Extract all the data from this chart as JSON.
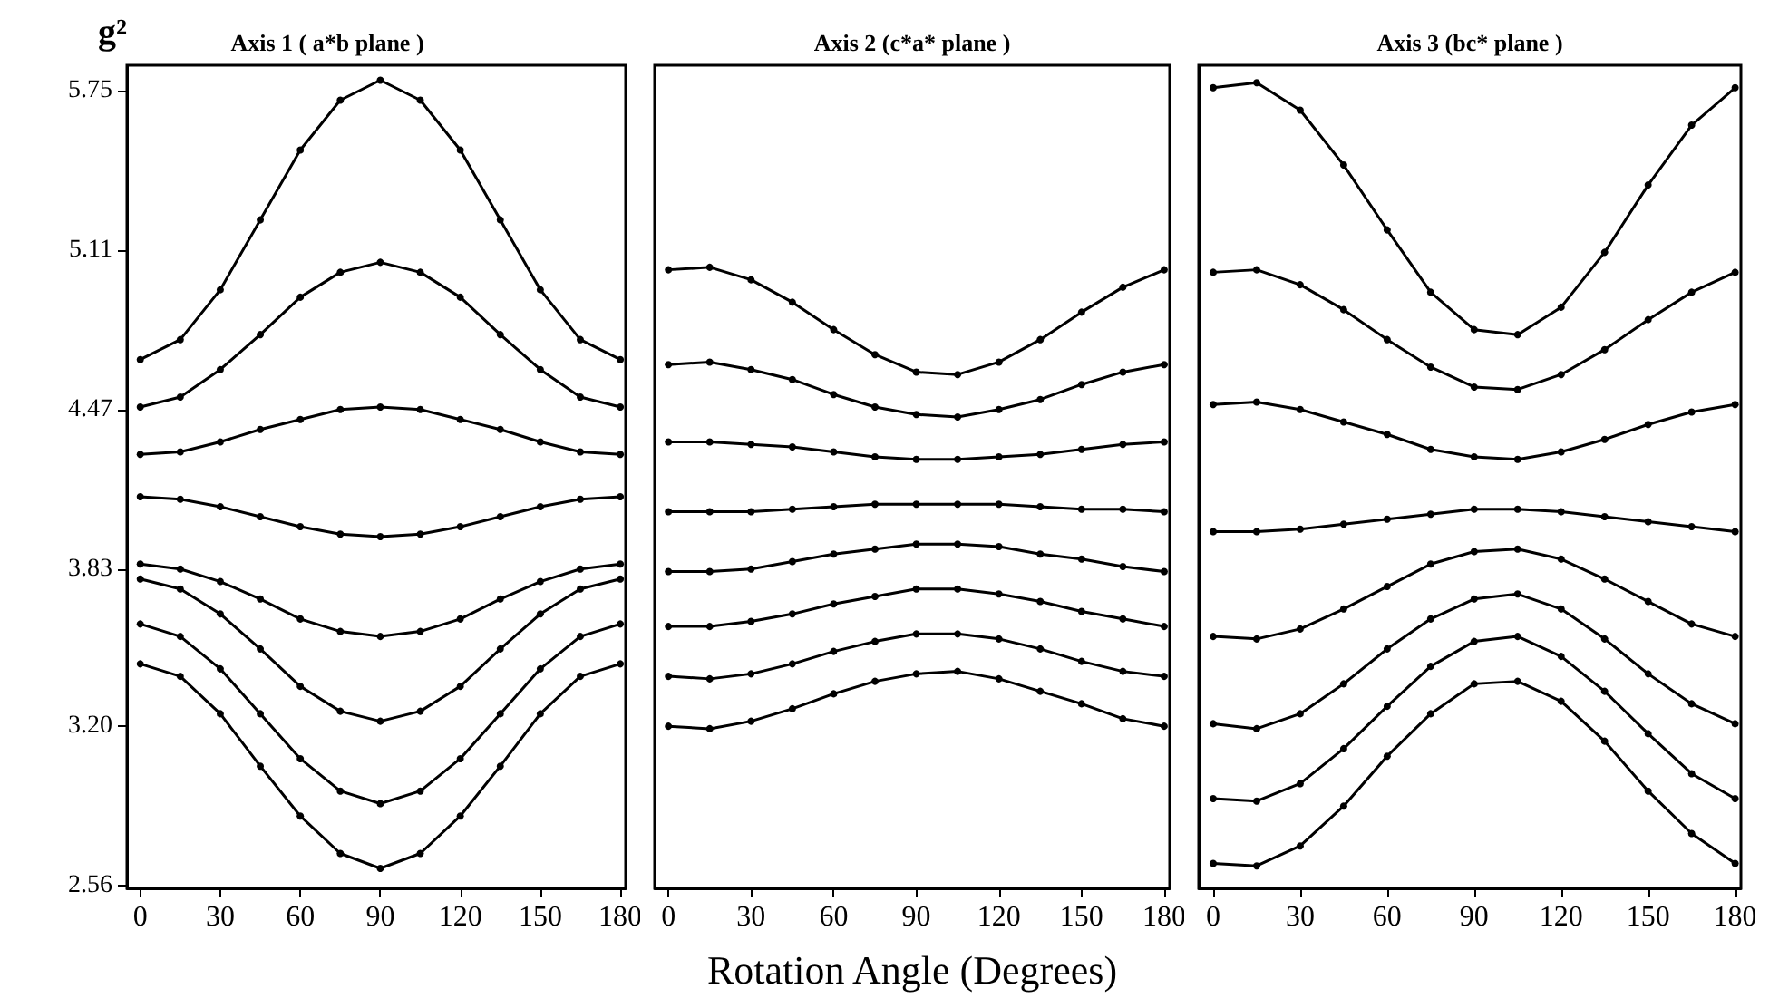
{
  "chart_data": [
    {
      "type": "line",
      "title": "Axis 1 ( a*b plane )",
      "ylabel": "g²",
      "x": [
        0,
        15,
        30,
        45,
        60,
        75,
        90,
        105,
        120,
        135,
        150,
        165,
        180
      ],
      "xlim": [
        -5,
        182
      ],
      "xticks": [
        0,
        30,
        60,
        90,
        120,
        150,
        180
      ],
      "ylim": [
        2.55,
        5.85
      ],
      "yticks": [
        2.56,
        {
          "value": 3.2,
          "label": "3.20"
        },
        3.83,
        4.47,
        5.11,
        5.75
      ],
      "grid": false,
      "marker": "circle",
      "line_style": "solid",
      "series": [
        {
          "color": "#000000",
          "values": [
            4.67,
            4.75,
            4.95,
            5.23,
            5.51,
            5.71,
            5.79,
            5.71,
            5.51,
            5.23,
            4.95,
            4.75,
            4.67
          ]
        },
        {
          "color": "#000000",
          "values": [
            4.48,
            4.52,
            4.63,
            4.77,
            4.92,
            5.02,
            5.06,
            5.02,
            4.92,
            4.77,
            4.63,
            4.52,
            4.48
          ]
        },
        {
          "color": "#000000",
          "values": [
            4.29,
            4.3,
            4.34,
            4.39,
            4.43,
            4.47,
            4.48,
            4.47,
            4.43,
            4.39,
            4.34,
            4.3,
            4.29
          ]
        },
        {
          "color": "#000000",
          "values": [
            4.12,
            4.11,
            4.08,
            4.04,
            4.0,
            3.97,
            3.96,
            3.97,
            4.0,
            4.04,
            4.08,
            4.11,
            4.12
          ]
        },
        {
          "color": "#000000",
          "values": [
            3.85,
            3.83,
            3.78,
            3.71,
            3.63,
            3.58,
            3.56,
            3.58,
            3.63,
            3.71,
            3.78,
            3.83,
            3.85
          ]
        },
        {
          "color": "#000000",
          "values": [
            3.79,
            3.75,
            3.65,
            3.51,
            3.36,
            3.26,
            3.22,
            3.26,
            3.36,
            3.51,
            3.65,
            3.75,
            3.79
          ]
        },
        {
          "color": "#000000",
          "values": [
            3.61,
            3.56,
            3.43,
            3.25,
            3.07,
            2.94,
            2.89,
            2.94,
            3.07,
            3.25,
            3.43,
            3.56,
            3.61
          ]
        },
        {
          "color": "#000000",
          "values": [
            3.45,
            3.4,
            3.25,
            3.04,
            2.84,
            2.69,
            2.63,
            2.69,
            2.84,
            3.04,
            3.25,
            3.4,
            3.45
          ]
        }
      ]
    },
    {
      "type": "line",
      "title": "Axis 2 (c*a* plane )",
      "xlabel": "Rotation Angle (Degrees)",
      "x": [
        0,
        15,
        30,
        45,
        60,
        75,
        90,
        105,
        120,
        135,
        150,
        165,
        180
      ],
      "xlim": [
        -5,
        182
      ],
      "xticks": [
        0,
        30,
        60,
        90,
        120,
        150,
        180
      ],
      "ylim": [
        2.55,
        5.85
      ],
      "tick_labels": "x",
      "grid": false,
      "marker": "circle",
      "line_style": "solid",
      "series": [
        {
          "color": "#000000",
          "values": [
            5.03,
            5.04,
            4.99,
            4.9,
            4.79,
            4.69,
            4.62,
            4.61,
            4.66,
            4.75,
            4.86,
            4.96,
            5.03
          ]
        },
        {
          "color": "#000000",
          "values": [
            4.65,
            4.66,
            4.63,
            4.59,
            4.53,
            4.48,
            4.45,
            4.44,
            4.47,
            4.51,
            4.57,
            4.62,
            4.65
          ]
        },
        {
          "color": "#000000",
          "values": [
            4.34,
            4.34,
            4.33,
            4.32,
            4.3,
            4.28,
            4.27,
            4.27,
            4.28,
            4.29,
            4.31,
            4.33,
            4.34
          ]
        },
        {
          "color": "#000000",
          "values": [
            4.06,
            4.06,
            4.06,
            4.07,
            4.08,
            4.09,
            4.09,
            4.09,
            4.09,
            4.08,
            4.07,
            4.07,
            4.06
          ]
        },
        {
          "color": "#000000",
          "values": [
            3.82,
            3.82,
            3.83,
            3.86,
            3.89,
            3.91,
            3.93,
            3.93,
            3.92,
            3.89,
            3.87,
            3.84,
            3.82
          ]
        },
        {
          "color": "#000000",
          "values": [
            3.6,
            3.6,
            3.62,
            3.65,
            3.69,
            3.72,
            3.75,
            3.75,
            3.73,
            3.7,
            3.66,
            3.63,
            3.6
          ]
        },
        {
          "color": "#000000",
          "values": [
            3.4,
            3.39,
            3.41,
            3.45,
            3.5,
            3.54,
            3.57,
            3.57,
            3.55,
            3.51,
            3.46,
            3.42,
            3.4
          ]
        },
        {
          "color": "#000000",
          "values": [
            3.2,
            3.19,
            3.22,
            3.27,
            3.33,
            3.38,
            3.41,
            3.42,
            3.39,
            3.34,
            3.29,
            3.23,
            3.2
          ]
        }
      ]
    },
    {
      "type": "line",
      "title": "Axis 3 (bc* plane )",
      "x": [
        0,
        15,
        30,
        45,
        60,
        75,
        90,
        105,
        120,
        135,
        150,
        165,
        180
      ],
      "xlim": [
        -5,
        182
      ],
      "xticks": [
        0,
        30,
        60,
        90,
        120,
        150,
        180
      ],
      "ylim": [
        2.55,
        5.85
      ],
      "tick_labels": "x",
      "grid": false,
      "marker": "circle",
      "line_style": "solid",
      "series": [
        {
          "color": "#000000",
          "values": [
            5.76,
            5.78,
            5.67,
            5.45,
            5.19,
            4.94,
            4.79,
            4.77,
            4.88,
            5.1,
            5.37,
            5.61,
            5.76
          ]
        },
        {
          "color": "#000000",
          "values": [
            5.02,
            5.03,
            4.97,
            4.87,
            4.75,
            4.64,
            4.56,
            4.55,
            4.61,
            4.71,
            4.83,
            4.94,
            5.02
          ]
        },
        {
          "color": "#000000",
          "values": [
            4.49,
            4.5,
            4.47,
            4.42,
            4.37,
            4.31,
            4.28,
            4.27,
            4.3,
            4.35,
            4.41,
            4.46,
            4.49
          ]
        },
        {
          "color": "#000000",
          "values": [
            3.98,
            3.98,
            3.99,
            4.01,
            4.03,
            4.05,
            4.07,
            4.07,
            4.06,
            4.04,
            4.02,
            4.0,
            3.98
          ]
        },
        {
          "color": "#000000",
          "values": [
            3.56,
            3.55,
            3.59,
            3.67,
            3.76,
            3.85,
            3.9,
            3.91,
            3.87,
            3.79,
            3.7,
            3.61,
            3.56
          ]
        },
        {
          "color": "#000000",
          "values": [
            3.21,
            3.19,
            3.25,
            3.37,
            3.51,
            3.63,
            3.71,
            3.73,
            3.67,
            3.55,
            3.41,
            3.29,
            3.21
          ]
        },
        {
          "color": "#000000",
          "values": [
            2.91,
            2.9,
            2.97,
            3.11,
            3.28,
            3.44,
            3.54,
            3.56,
            3.48,
            3.34,
            3.17,
            3.01,
            2.91
          ]
        },
        {
          "color": "#000000",
          "values": [
            2.65,
            2.64,
            2.72,
            2.88,
            3.08,
            3.25,
            3.37,
            3.38,
            3.3,
            3.14,
            2.94,
            2.77,
            2.65
          ]
        }
      ]
    }
  ]
}
